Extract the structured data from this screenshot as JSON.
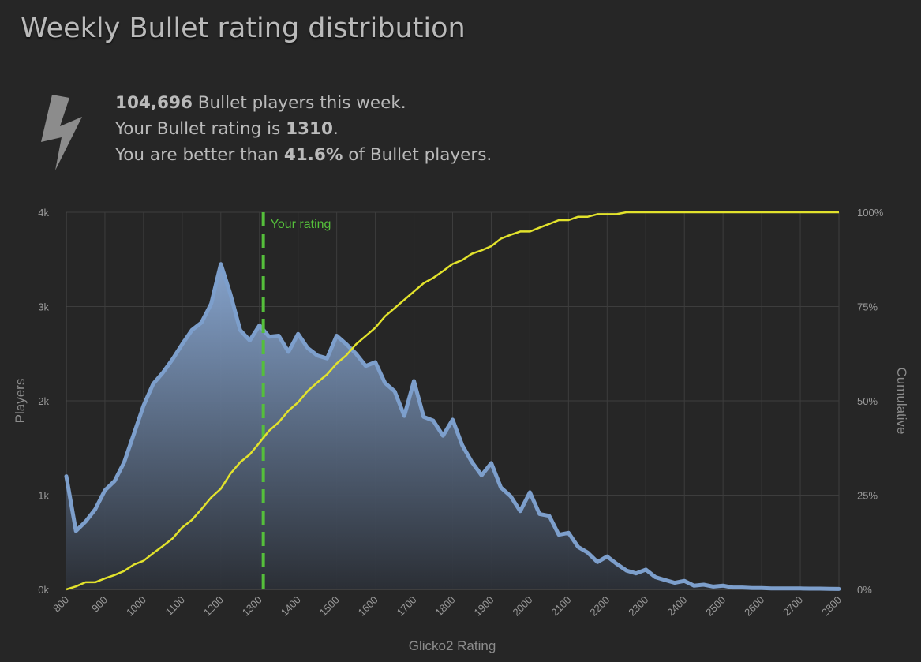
{
  "page": {
    "title": "Weekly Bullet rating distribution"
  },
  "summary": {
    "icon": "lightning-bolt-icon",
    "players_count": "104,696",
    "players_suffix": " Bullet players this week.",
    "rating_prefix": "Your Bullet rating is ",
    "rating_value": "1310",
    "rating_suffix": ".",
    "better_prefix": "You are better than ",
    "better_value": "41.6%",
    "better_suffix": " of Bullet players."
  },
  "colors": {
    "background": "#262626",
    "players_line": "#7d9fcc",
    "cumulative_line": "#e2e22c",
    "your_rating_line": "#55bf3b",
    "grid": "#3d3d3d"
  },
  "chart_data": {
    "type": "area",
    "xlabel": "Glicko2 Rating",
    "ylabel_left": "Players",
    "ylabel_right": "Cumulative",
    "xlim": [
      800,
      2800
    ],
    "ylim_left": [
      0,
      4000
    ],
    "ylim_right": [
      0,
      100
    ],
    "x_ticks": [
      "800",
      "900",
      "1000",
      "1100",
      "1200",
      "1300",
      "1400",
      "1500",
      "1600",
      "1700",
      "1800",
      "1900",
      "2000",
      "2100",
      "2200",
      "2300",
      "2400",
      "2500",
      "2600",
      "2700",
      "2800"
    ],
    "y_ticks_left": [
      "0k",
      "1k",
      "2k",
      "3k",
      "4k"
    ],
    "y_ticks_right": [
      "0%",
      "25%",
      "50%",
      "75%",
      "100%"
    ],
    "grid": true,
    "your_rating": {
      "value": 1310,
      "label": "Your rating"
    },
    "x": [
      800,
      825,
      850,
      875,
      900,
      925,
      950,
      975,
      1000,
      1025,
      1050,
      1075,
      1100,
      1125,
      1150,
      1175,
      1200,
      1225,
      1250,
      1275,
      1300,
      1325,
      1350,
      1375,
      1400,
      1425,
      1450,
      1475,
      1500,
      1525,
      1550,
      1575,
      1600,
      1625,
      1650,
      1675,
      1700,
      1725,
      1750,
      1775,
      1800,
      1825,
      1850,
      1875,
      1900,
      1925,
      1950,
      1975,
      2000,
      2025,
      2050,
      2075,
      2100,
      2125,
      2150,
      2175,
      2200,
      2225,
      2250,
      2275,
      2300,
      2325,
      2350,
      2375,
      2400,
      2425,
      2450,
      2475,
      2500,
      2525,
      2550,
      2575,
      2600,
      2625,
      2650,
      2675,
      2700,
      2725,
      2750,
      2775,
      2800
    ],
    "series": [
      {
        "name": "Players",
        "axis": "left",
        "values": [
          1200,
          620,
          720,
          850,
          1050,
          1150,
          1350,
          1650,
          1950,
          2180,
          2300,
          2440,
          2600,
          2750,
          2830,
          3030,
          3450,
          3130,
          2750,
          2640,
          2800,
          2680,
          2690,
          2520,
          2710,
          2560,
          2480,
          2450,
          2690,
          2600,
          2500,
          2370,
          2410,
          2190,
          2100,
          1840,
          2210,
          1830,
          1790,
          1630,
          1800,
          1530,
          1350,
          1210,
          1340,
          1080,
          990,
          830,
          1030,
          800,
          780,
          580,
          600,
          450,
          390,
          290,
          350,
          270,
          200,
          170,
          210,
          130,
          100,
          70,
          90,
          40,
          50,
          30,
          40,
          20,
          20,
          15,
          15,
          10,
          10,
          10,
          10,
          8,
          8,
          6,
          5
        ]
      },
      {
        "name": "Cumulative",
        "axis": "right",
        "values": [
          0,
          0.8,
          1.9,
          1.9,
          2.9,
          3.8,
          4.9,
          6.6,
          7.6,
          9.6,
          11.5,
          13.5,
          16.4,
          18.4,
          21.3,
          24.4,
          26.7,
          30.7,
          33.7,
          35.8,
          38.9,
          42.1,
          44.3,
          47.4,
          49.6,
          52.6,
          54.9,
          57.0,
          59.9,
          62.1,
          65.0,
          67.2,
          69.4,
          72.4,
          74.6,
          76.8,
          79.0,
          81.2,
          82.6,
          84.4,
          86.3,
          87.3,
          89.0,
          89.9,
          91.0,
          93.0,
          94.0,
          94.9,
          94.9,
          95.9,
          96.9,
          97.9,
          97.9,
          98.8,
          98.8,
          99.5,
          99.5,
          99.5,
          100,
          100,
          100,
          100,
          100,
          100,
          100,
          100,
          100,
          100,
          100,
          100,
          100,
          100,
          100,
          100,
          100,
          100,
          100,
          100,
          100,
          100,
          100
        ]
      }
    ]
  }
}
